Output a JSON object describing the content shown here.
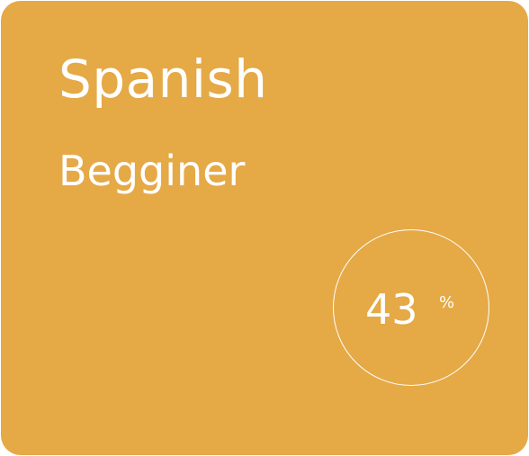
{
  "course": {
    "title": "Spanish",
    "level": "Begginer",
    "progress": {
      "value": "43",
      "unit": "%"
    }
  },
  "colors": {
    "card_background": "#e5a946",
    "text": "#ffffff"
  }
}
